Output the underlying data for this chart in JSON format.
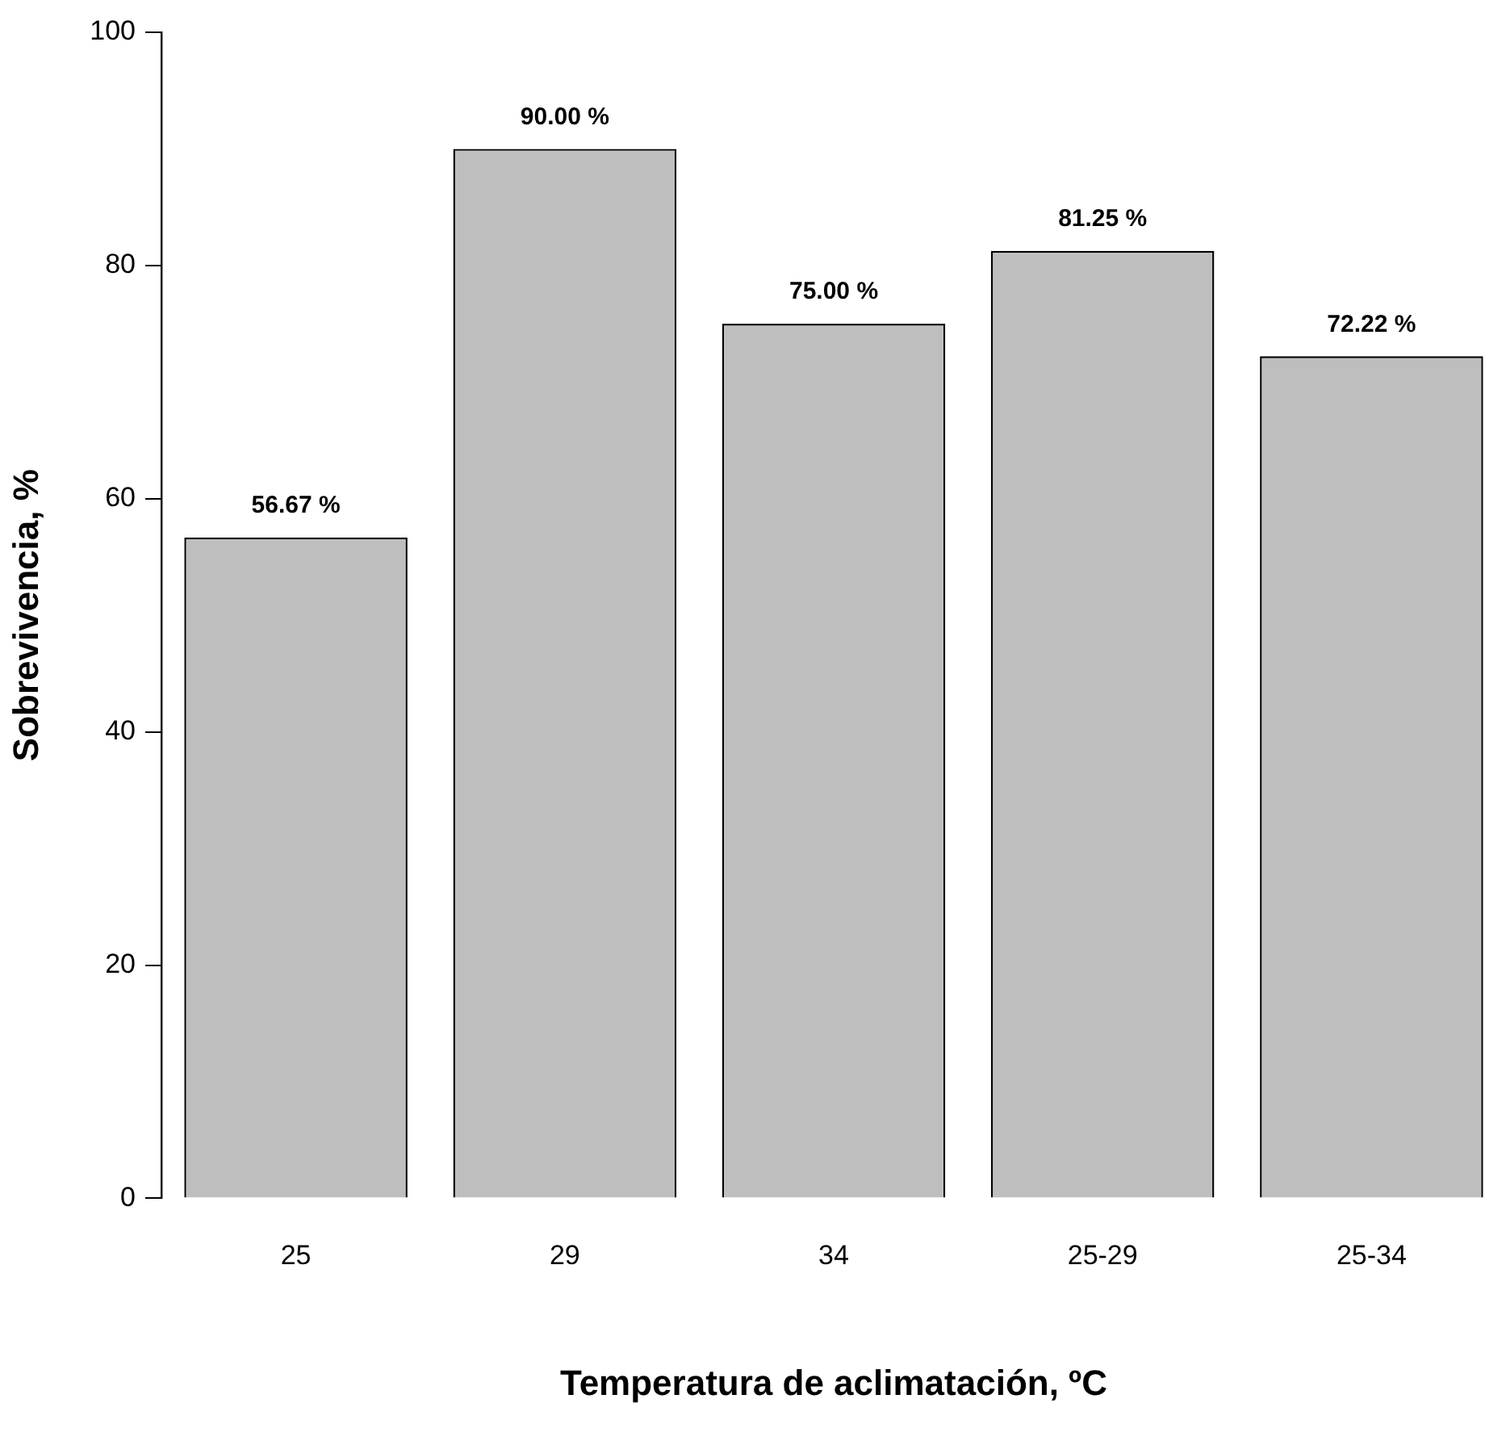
{
  "chart_data": {
    "type": "bar",
    "xlabel": "Temperatura de aclimatación, ºC",
    "ylabel": "Sobrevivencia, %",
    "categories": [
      "25",
      "29",
      "34",
      "25-29",
      "25-34"
    ],
    "values": [
      56.67,
      90.0,
      75.0,
      81.25,
      72.22
    ],
    "value_labels": [
      "56.67 %",
      "90.00 %",
      "75.00 %",
      "81.25 %",
      "72.22 %"
    ],
    "color": "#bebebe",
    "ylim": [
      0,
      100
    ],
    "yticks": [
      0,
      20,
      40,
      60,
      80,
      100
    ]
  }
}
